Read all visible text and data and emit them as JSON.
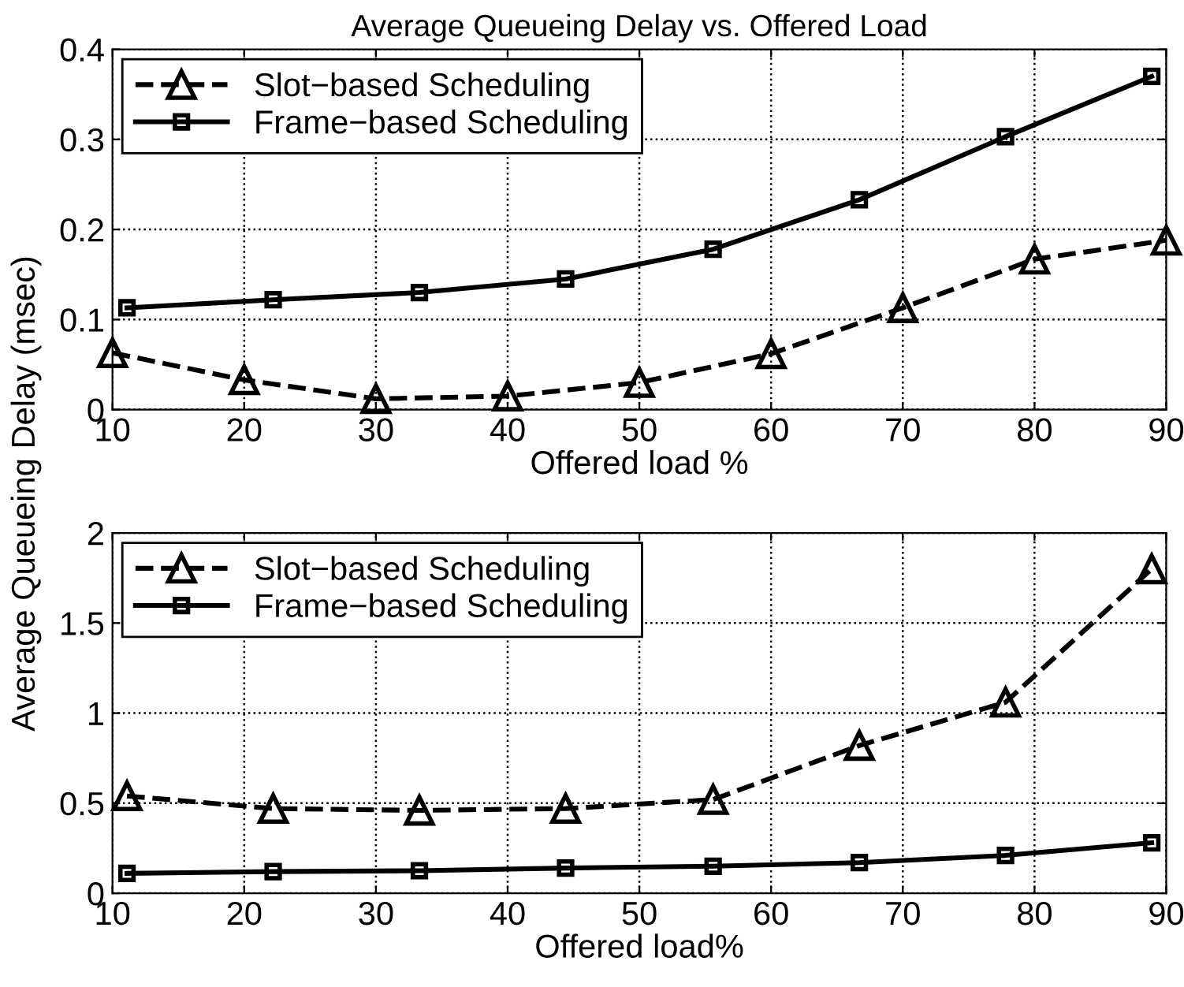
{
  "chart_data": [
    {
      "type": "line",
      "title": "Average Queueing Delay vs. Offered Load",
      "xlabel": "Offered load %",
      "ylabel": "Average Queueing Delay (msec)",
      "xlim": [
        10,
        90
      ],
      "xticks": [
        10,
        20,
        30,
        40,
        50,
        60,
        70,
        80,
        90
      ],
      "ylim": [
        0,
        0.4
      ],
      "yticks": [
        0,
        0.1,
        0.2,
        0.3,
        0.4
      ],
      "grid": true,
      "legend": "top left",
      "series": [
        {
          "name": "Slot−based Scheduling",
          "color": "#000000",
          "marker": "triangle",
          "line_style": "dashed",
          "x": [
            10,
            20,
            30,
            40,
            50,
            60,
            70,
            80,
            90
          ],
          "values": [
            0.063,
            0.033,
            0.012,
            0.015,
            0.03,
            0.062,
            0.113,
            0.167,
            0.188
          ]
        },
        {
          "name": "Frame−based Scheduling",
          "color": "#000000",
          "marker": "square",
          "line_style": "solid",
          "x": [
            11.1,
            22.2,
            33.3,
            44.4,
            55.6,
            66.7,
            77.8,
            88.9
          ],
          "values": [
            0.113,
            0.122,
            0.13,
            0.145,
            0.178,
            0.233,
            0.303,
            0.37
          ]
        }
      ]
    },
    {
      "type": "line",
      "xlabel": "Offered load%",
      "xlim": [
        10,
        90
      ],
      "xticks": [
        10,
        20,
        30,
        40,
        50,
        60,
        70,
        80,
        90
      ],
      "ylim": [
        0,
        2
      ],
      "yticks": [
        0,
        0.5,
        1,
        1.5,
        2
      ],
      "grid": true,
      "legend": "top left",
      "series": [
        {
          "name": "Slot−based Scheduling",
          "color": "#000000",
          "marker": "triangle",
          "line_style": "dashed",
          "x": [
            11.1,
            22.2,
            33.3,
            44.4,
            55.6,
            66.7,
            77.8,
            88.9
          ],
          "values": [
            0.54,
            0.47,
            0.46,
            0.47,
            0.52,
            0.82,
            1.06,
            1.8
          ]
        },
        {
          "name": "Frame−based Scheduling",
          "color": "#000000",
          "marker": "square",
          "line_style": "solid",
          "x": [
            11.1,
            22.2,
            33.3,
            44.4,
            55.6,
            66.7,
            77.8,
            88.9
          ],
          "values": [
            0.11,
            0.12,
            0.125,
            0.14,
            0.15,
            0.17,
            0.21,
            0.28
          ]
        }
      ]
    }
  ]
}
